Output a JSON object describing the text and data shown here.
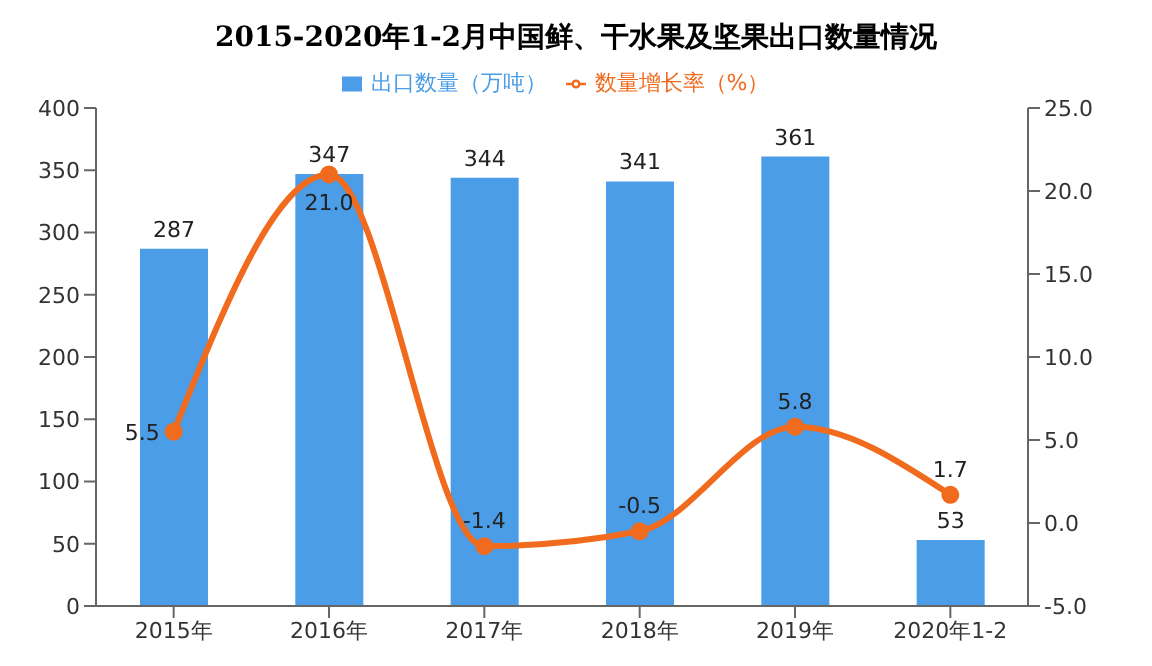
{
  "chart_data": {
    "type": "bar",
    "title": "2015-2020年1-2月中国鲜、干水果及坚果出口数量情况",
    "categories": [
      "2015年",
      "2016年",
      "2017年",
      "2018年",
      "2019年",
      "2020年1-2"
    ],
    "series": [
      {
        "name": "出口数量（万吨）",
        "color": "#4a9de6",
        "values": [
          287,
          347,
          344,
          341,
          361,
          53
        ],
        "value_labels": [
          "287",
          "347",
          "344",
          "341",
          "361",
          "53"
        ]
      },
      {
        "name": "数量增长率（%）",
        "type": "line",
        "axis": "y2",
        "color": "#f06b1e",
        "values": [
          5.5,
          21.0,
          -1.4,
          -0.5,
          5.8,
          1.7
        ],
        "value_labels": [
          "5.5",
          "21.0",
          "-1.4",
          "-0.5",
          "5.8",
          "1.7"
        ]
      }
    ],
    "ylim": [
      0,
      400
    ],
    "yticks": [
      0,
      50,
      100,
      150,
      200,
      250,
      300,
      350,
      400
    ],
    "y2lim": [
      -5,
      25
    ],
    "y2ticks": [
      {
        "value": -5,
        "label": "-5.0"
      },
      {
        "value": 0,
        "label": "0.0"
      },
      {
        "value": 5,
        "label": "5.0"
      },
      {
        "value": 10,
        "label": "10.0"
      },
      {
        "value": 15,
        "label": "15.0"
      },
      {
        "value": 20,
        "label": "20.0"
      },
      {
        "value": 25,
        "label": "25.0"
      }
    ],
    "marker": "circle",
    "grid": false,
    "legend": "top"
  }
}
